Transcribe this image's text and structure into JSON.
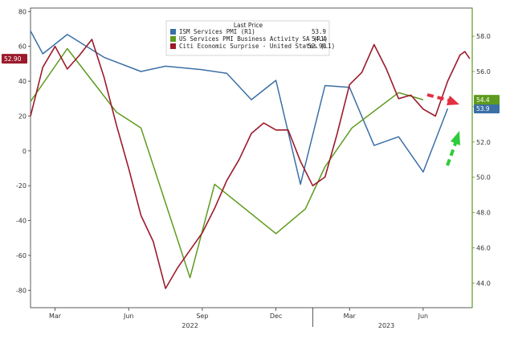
{
  "chart_data": {
    "type": "line",
    "title": "",
    "legend_title": "Last Price",
    "legend_position": "top-center",
    "x_months": [
      "Mar",
      "Jun",
      "Sep",
      "Dec",
      "Mar",
      "Jun"
    ],
    "x_years": [
      "2022",
      "2023"
    ],
    "left_axis": {
      "ylim": [
        -90,
        82
      ],
      "ticks": [
        80,
        60,
        40,
        20,
        0,
        -20,
        -40,
        -60,
        -80
      ]
    },
    "right_axis": {
      "ylim": [
        42.6,
        59.6
      ],
      "ticks": [
        "58.0",
        "56.0",
        "54.0",
        "52.0",
        "50.0",
        "48.0",
        "46.0",
        "44.0"
      ]
    },
    "series": [
      {
        "name": "ISM Services PMI (R1)",
        "last_price": "53.9",
        "axis": "right",
        "color": "#3b6fa6",
        "badge": "53.9",
        "points": [
          [
            0,
            58.3
          ],
          [
            0.5,
            57.0
          ],
          [
            1.5,
            58.1
          ],
          [
            3,
            56.8
          ],
          [
            4.5,
            56.0
          ],
          [
            5.5,
            56.3
          ],
          [
            7,
            56.1
          ],
          [
            8,
            55.9
          ],
          [
            9,
            54.4
          ],
          [
            10,
            55.5
          ],
          [
            11,
            49.6
          ],
          [
            12,
            55.2
          ],
          [
            13,
            55.1
          ],
          [
            14,
            51.8
          ],
          [
            15,
            52.3
          ],
          [
            16,
            50.3
          ],
          [
            17,
            53.9
          ]
        ]
      },
      {
        "name": "US Services PMI Business Activity SA  (R1)",
        "last_price": "54.4",
        "axis": "right",
        "color": "#5e9a1e",
        "badge": "54.4",
        "points": [
          [
            0,
            54.3
          ],
          [
            1.5,
            57.3
          ],
          [
            3.5,
            53.7
          ],
          [
            4.5,
            52.8
          ],
          [
            6.5,
            44.3
          ],
          [
            7.5,
            49.6
          ],
          [
            10,
            46.8
          ],
          [
            11.2,
            48.2
          ],
          [
            12,
            50.6
          ],
          [
            13.1,
            52.8
          ],
          [
            15,
            54.8
          ],
          [
            16,
            54.4
          ]
        ]
      },
      {
        "name": "Citi Economic Surprise - United States  (L1)",
        "last_price": "52.90",
        "axis": "left",
        "color": "#9b1b2c",
        "badge": "52.90",
        "points": [
          [
            0,
            20
          ],
          [
            0.5,
            48
          ],
          [
            1,
            60
          ],
          [
            1.5,
            47
          ],
          [
            2,
            55
          ],
          [
            2.5,
            64
          ],
          [
            3,
            42
          ],
          [
            3.5,
            15
          ],
          [
            4,
            -10
          ],
          [
            4.5,
            -37
          ],
          [
            5,
            -52
          ],
          [
            5.5,
            -79
          ],
          [
            6,
            -67
          ],
          [
            6.5,
            -57
          ],
          [
            7,
            -47
          ],
          [
            7.5,
            -33
          ],
          [
            8,
            -17
          ],
          [
            8.5,
            -5
          ],
          [
            9,
            10
          ],
          [
            9.5,
            16
          ],
          [
            10,
            12
          ],
          [
            10.5,
            12
          ],
          [
            11,
            -6
          ],
          [
            11.5,
            -20
          ],
          [
            12,
            -15
          ],
          [
            12.5,
            10
          ],
          [
            13,
            38
          ],
          [
            13.5,
            45
          ],
          [
            14,
            61
          ],
          [
            14.5,
            47
          ],
          [
            15,
            30
          ],
          [
            15.5,
            32
          ],
          [
            16,
            24
          ],
          [
            16.5,
            20
          ],
          [
            17,
            40
          ],
          [
            17.5,
            55
          ],
          [
            17.7,
            57
          ],
          [
            17.9,
            52.9
          ]
        ]
      }
    ]
  }
}
